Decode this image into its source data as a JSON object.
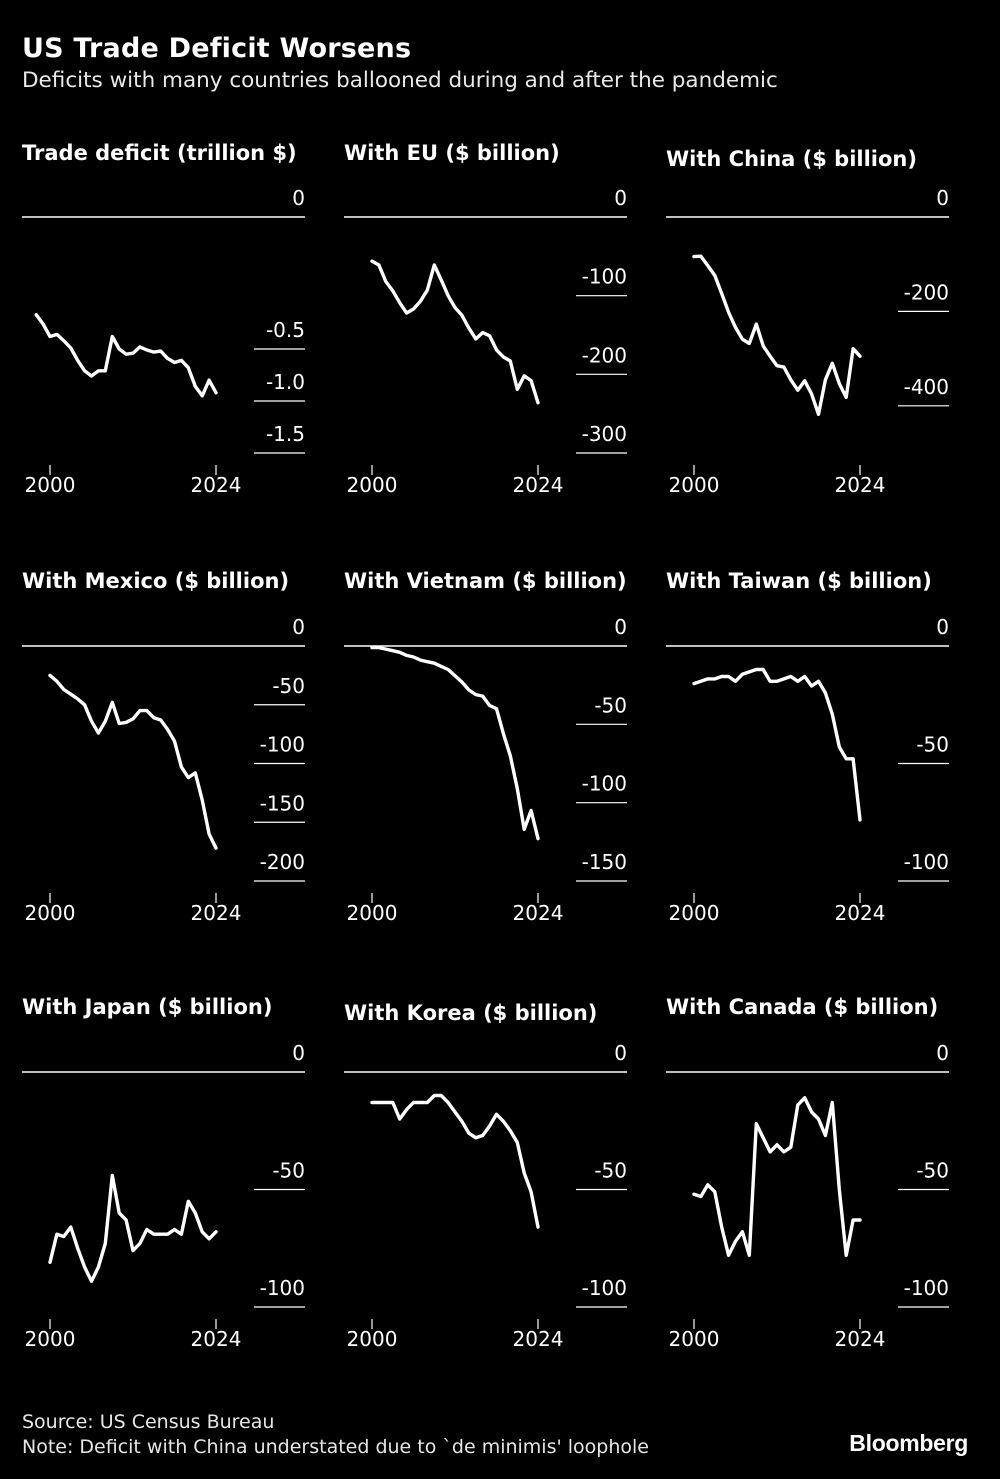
{
  "header": {
    "title": "US Trade Deficit Worsens",
    "subtitle": "Deficits with many countries ballooned during and after the pandemic"
  },
  "footer": {
    "source": "Source: US Census Bureau",
    "note": "Note: Deficit with China understated due to `de minimis' loophole",
    "brand": "Bloomberg"
  },
  "colors": {
    "background": "#000000",
    "line": "#ffffff"
  },
  "chart_data": [
    {
      "type": "line",
      "title": "Trade deficit (trillion $)",
      "x_ticks": [
        2000,
        2024
      ],
      "y_ticks": [
        0,
        -0.5,
        -1.0,
        -1.5
      ],
      "y_tick_labels": [
        "0",
        "-0.5",
        "-1.0",
        "-1.5"
      ],
      "ylim": [
        -1.5,
        0
      ],
      "x": [
        1998,
        1999,
        2000,
        2001,
        2002,
        2003,
        2004,
        2005,
        2006,
        2007,
        2008,
        2009,
        2010,
        2011,
        2012,
        2013,
        2014,
        2015,
        2016,
        2017,
        2018,
        2019,
        2020,
        2021,
        2022,
        2023,
        2024
      ],
      "y": [
        -0.17,
        -0.26,
        -0.38,
        -0.36,
        -0.42,
        -0.49,
        -0.61,
        -0.71,
        -0.76,
        -0.71,
        -0.71,
        -0.38,
        -0.5,
        -0.55,
        -0.54,
        -0.48,
        -0.51,
        -0.53,
        -0.52,
        -0.59,
        -0.63,
        -0.61,
        -0.68,
        -0.86,
        -0.95,
        -0.8,
        -0.92
      ]
    },
    {
      "type": "line",
      "title": "With EU ($ billion)",
      "x_ticks": [
        2000,
        2024
      ],
      "y_ticks": [
        0,
        -100,
        -200,
        -300
      ],
      "y_tick_labels": [
        "0",
        "-100",
        "-200",
        "-300"
      ],
      "ylim": [
        -300,
        0
      ],
      "x": [
        2000,
        2001,
        2002,
        2003,
        2004,
        2005,
        2006,
        2007,
        2008,
        2009,
        2010,
        2011,
        2012,
        2013,
        2014,
        2015,
        2016,
        2017,
        2018,
        2019,
        2020,
        2021,
        2022,
        2023,
        2024
      ],
      "y": [
        -56,
        -61,
        -82,
        -94,
        -109,
        -122,
        -117,
        -107,
        -93,
        -61,
        -80,
        -100,
        -115,
        -125,
        -141,
        -155,
        -147,
        -151,
        -169,
        -178,
        -183,
        -219,
        -202,
        -208,
        -236
      ]
    },
    {
      "type": "line",
      "title": "With China ($ billion)",
      "x_ticks": [
        2000,
        2024
      ],
      "y_ticks": [
        0,
        -200,
        -400
      ],
      "y_tick_labels": [
        "0",
        "-200",
        "-400"
      ],
      "ylim": [
        -500,
        0
      ],
      "x": [
        2000,
        2001,
        2002,
        2003,
        2004,
        2005,
        2006,
        2007,
        2008,
        2009,
        2010,
        2011,
        2012,
        2013,
        2014,
        2015,
        2016,
        2017,
        2018,
        2019,
        2020,
        2021,
        2022,
        2023,
        2024
      ],
      "y": [
        -84,
        -83,
        -103,
        -124,
        -162,
        -202,
        -234,
        -259,
        -268,
        -227,
        -273,
        -295,
        -315,
        -318,
        -345,
        -367,
        -347,
        -375,
        -418,
        -345,
        -310,
        -353,
        -382,
        -279,
        -295
      ]
    },
    {
      "type": "line",
      "title": "With Mexico ($ billion)",
      "x_ticks": [
        2000,
        2024
      ],
      "y_ticks": [
        0,
        -50,
        -100,
        -150,
        -200
      ],
      "y_tick_labels": [
        "0",
        "-50",
        "-100",
        "-150",
        "-200"
      ],
      "ylim": [
        -200,
        0
      ],
      "x": [
        2000,
        2001,
        2002,
        2003,
        2004,
        2005,
        2006,
        2007,
        2008,
        2009,
        2010,
        2011,
        2012,
        2013,
        2014,
        2015,
        2016,
        2017,
        2018,
        2019,
        2020,
        2021,
        2022,
        2023,
        2024
      ],
      "y": [
        -25,
        -30,
        -37,
        -41,
        -45,
        -50,
        -64,
        -74,
        -64,
        -48,
        -66,
        -65,
        -62,
        -55,
        -55,
        -61,
        -63,
        -71,
        -81,
        -103,
        -112,
        -108,
        -131,
        -160,
        -172
      ]
    },
    {
      "type": "line",
      "title": "With Vietnam ($ billion)",
      "x_ticks": [
        2000,
        2024
      ],
      "y_ticks": [
        0,
        -50,
        -100,
        -150
      ],
      "y_tick_labels": [
        "0",
        "-50",
        "-100",
        "-150"
      ],
      "ylim": [
        -150,
        0
      ],
      "x": [
        2000,
        2001,
        2002,
        2003,
        2004,
        2005,
        2006,
        2007,
        2008,
        2009,
        2010,
        2011,
        2012,
        2013,
        2014,
        2015,
        2016,
        2017,
        2018,
        2019,
        2020,
        2021,
        2022,
        2023,
        2024
      ],
      "y": [
        -1,
        -1,
        -2,
        -3,
        -4,
        -6,
        -7,
        -9,
        -10,
        -11,
        -13,
        -15,
        -19,
        -23,
        -28,
        -31,
        -32,
        -38,
        -40,
        -56,
        -70,
        -91,
        -117,
        -105,
        -123
      ]
    },
    {
      "type": "line",
      "title": "With Taiwan ($ billion)",
      "x_ticks": [
        2000,
        2024
      ],
      "y_ticks": [
        0,
        -50,
        -100
      ],
      "y_tick_labels": [
        "0",
        "-50",
        "-100"
      ],
      "ylim": [
        -100,
        0
      ],
      "x": [
        2000,
        2001,
        2002,
        2003,
        2004,
        2005,
        2006,
        2007,
        2008,
        2009,
        2010,
        2011,
        2012,
        2013,
        2014,
        2015,
        2016,
        2017,
        2018,
        2019,
        2020,
        2021,
        2022,
        2023,
        2024
      ],
      "y": [
        -16,
        -15,
        -14,
        -14,
        -13,
        -13,
        -15,
        -12,
        -11,
        -10,
        -10,
        -15,
        -15,
        -14,
        -13,
        -15,
        -13,
        -17,
        -15,
        -20,
        -29,
        -43,
        -48,
        -48,
        -74
      ]
    },
    {
      "type": "line",
      "title": "With Japan ($ billion)",
      "x_ticks": [
        2000,
        2024
      ],
      "y_ticks": [
        0,
        -50,
        -100
      ],
      "y_tick_labels": [
        "0",
        "-50",
        "-100"
      ],
      "ylim": [
        -100,
        0
      ],
      "x": [
        2000,
        2001,
        2002,
        2003,
        2004,
        2005,
        2006,
        2007,
        2008,
        2009,
        2010,
        2011,
        2012,
        2013,
        2014,
        2015,
        2016,
        2017,
        2018,
        2019,
        2020,
        2021,
        2022,
        2023,
        2024
      ],
      "y": [
        -81,
        -69,
        -70,
        -66,
        -75,
        -83,
        -89,
        -83,
        -73,
        -44,
        -60,
        -63,
        -76,
        -73,
        -67,
        -69,
        -69,
        -69,
        -67,
        -69,
        -55,
        -60,
        -68,
        -71,
        -68
      ]
    },
    {
      "type": "line",
      "title": "With Korea ($ billion)",
      "x_ticks": [
        2000,
        2024
      ],
      "y_ticks": [
        0,
        -50,
        -100
      ],
      "y_tick_labels": [
        "0",
        "-50",
        "-100"
      ],
      "ylim": [
        -100,
        0
      ],
      "x": [
        2000,
        2001,
        2002,
        2003,
        2004,
        2005,
        2006,
        2007,
        2008,
        2009,
        2010,
        2011,
        2012,
        2013,
        2014,
        2015,
        2016,
        2017,
        2018,
        2019,
        2020,
        2021,
        2022,
        2023,
        2024
      ],
      "y": [
        -13,
        -13,
        -13,
        -13,
        -20,
        -16,
        -13,
        -13,
        -13,
        -10,
        -10,
        -13,
        -17,
        -21,
        -26,
        -28,
        -27,
        -23,
        -18,
        -21,
        -25,
        -30,
        -43,
        -51,
        -66
      ]
    },
    {
      "type": "line",
      "title": "With Canada ($ billion)",
      "x_ticks": [
        2000,
        2024
      ],
      "y_ticks": [
        0,
        -50,
        -100
      ],
      "y_tick_labels": [
        "0",
        "-50",
        "-100"
      ],
      "ylim": [
        -100,
        0
      ],
      "x": [
        2000,
        2001,
        2002,
        2003,
        2004,
        2005,
        2006,
        2007,
        2008,
        2009,
        2010,
        2011,
        2012,
        2013,
        2014,
        2015,
        2016,
        2017,
        2018,
        2019,
        2020,
        2021,
        2022,
        2023,
        2024
      ],
      "y": [
        -52,
        -53,
        -48,
        -51,
        -66,
        -78,
        -72,
        -68,
        -78,
        -22,
        -28,
        -34,
        -31,
        -34,
        -32,
        -14,
        -11,
        -17,
        -20,
        -27,
        -13,
        -50,
        -78,
        -63,
        -63
      ]
    }
  ]
}
